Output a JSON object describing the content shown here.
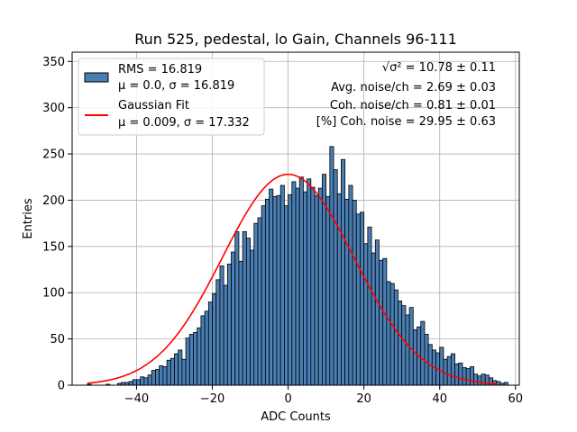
{
  "chart_data": {
    "type": "bar",
    "title": "Run 525, pedestal, lo Gain, Channels 96-111",
    "xlabel": "ADC Counts",
    "ylabel": "Entries",
    "xlim": [
      -57,
      61
    ],
    "ylim": [
      0,
      360
    ],
    "xticks": [
      "−40",
      "−20",
      "0",
      "20",
      "40",
      "60"
    ],
    "yticks": [
      "0",
      "50",
      "100",
      "150",
      "200",
      "250",
      "300",
      "350"
    ],
    "xtick_values": [
      -40,
      -20,
      0,
      20,
      40,
      60
    ],
    "ytick_values": [
      0,
      50,
      100,
      150,
      200,
      250,
      300,
      350
    ],
    "grid": true,
    "legend_position": "upper-left",
    "bin_width": 1,
    "bin_start": -53,
    "bin_end": 56,
    "values": [
      1,
      0,
      0,
      0,
      0,
      1,
      0,
      0,
      2,
      3,
      3,
      4,
      6,
      6,
      9,
      8,
      11,
      16,
      17,
      21,
      20,
      27,
      29,
      34,
      38,
      28,
      51,
      55,
      57,
      62,
      75,
      80,
      90,
      99,
      114,
      129,
      108,
      131,
      144,
      166,
      134,
      166,
      159,
      146,
      175,
      181,
      194,
      201,
      212,
      204,
      205,
      216,
      194,
      206,
      220,
      213,
      225,
      209,
      223,
      214,
      205,
      213,
      228,
      204,
      258,
      233,
      207,
      244,
      201,
      216,
      200,
      185,
      187,
      153,
      171,
      143,
      157,
      135,
      137,
      112,
      110,
      103,
      91,
      86,
      76,
      84,
      60,
      63,
      69,
      55,
      44,
      38,
      35,
      41,
      28,
      31,
      34,
      23,
      24,
      19,
      18,
      20,
      12,
      10,
      12,
      11,
      8,
      5,
      4,
      2,
      3
    ],
    "series": [
      {
        "name": "RMS = 16.819",
        "name_line2": "μ = 0.0, σ = 16.819",
        "kind": "histogram",
        "color": "#4a7fb5",
        "edge": "#000000"
      },
      {
        "name": "Gaussian Fit",
        "name_line2": "μ = 0.009, σ = 17.332",
        "kind": "line",
        "color": "#ff0000",
        "mu": 0.009,
        "sigma": 17.332,
        "amplitude": 228,
        "xrange": [
          -53,
          55
        ]
      }
    ],
    "annotations": [
      "√σ² = 10.78 ± 0.11",
      "Avg. noise/ch = 2.69 ± 0.03",
      "Coh. noise/ch = 0.81 ± 0.01",
      "[%] Coh. noise = 29.95 ± 0.63"
    ]
  }
}
